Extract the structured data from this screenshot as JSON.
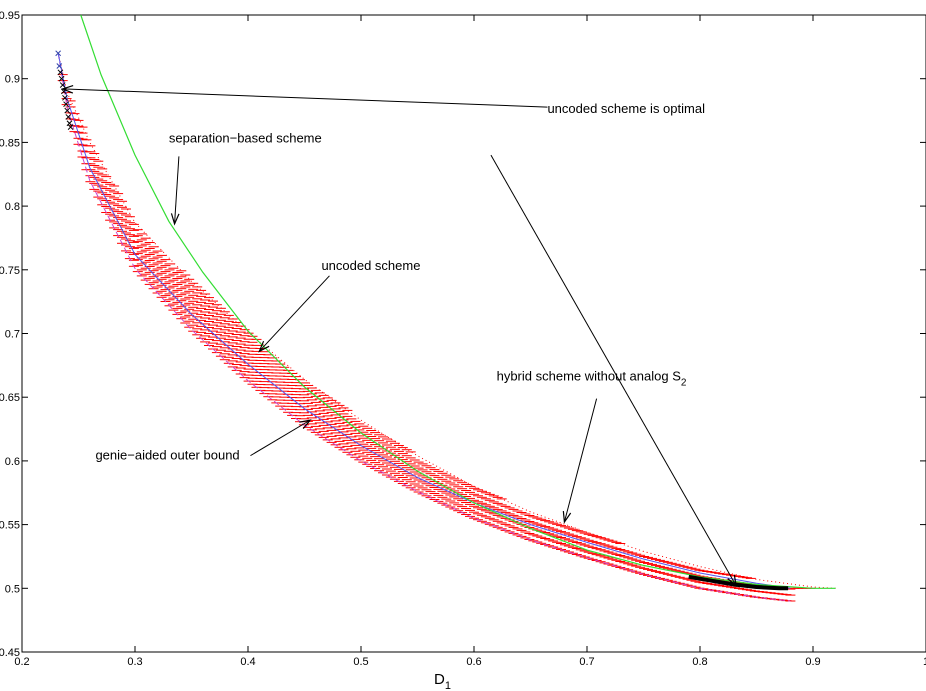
{
  "chart_data": {
    "type": "line",
    "title": "",
    "xlabel": "D",
    "xlabel_sub": "1",
    "ylabel": "",
    "xlim": [
      0.2,
      1.0
    ],
    "ylim": [
      0.45,
      0.95
    ],
    "xticks": [
      "0.2",
      "0.3",
      "0.4",
      "0.5",
      "0.6",
      "0.7",
      "0.8",
      "0.9",
      "1"
    ],
    "yticks": [
      "0.45",
      "0.5",
      "0.55",
      "0.6",
      "0.65",
      "0.7",
      "0.75",
      "0.8",
      "0.85",
      "0.9",
      "0.95"
    ],
    "grid": false,
    "colors": {
      "separation": "#33dd33",
      "uncoded": "#5555ee",
      "genie": "#cc44cc",
      "hybrid_hatch": "#ff0000",
      "annotation": "#000000"
    },
    "series": [
      {
        "key": "separation",
        "x": [
          0.252,
          0.27,
          0.3,
          0.33,
          0.36,
          0.4,
          0.45,
          0.5,
          0.55,
          0.6,
          0.65,
          0.7,
          0.75,
          0.8,
          0.85,
          0.9,
          0.92
        ],
        "y": [
          0.95,
          0.903,
          0.84,
          0.788,
          0.748,
          0.702,
          0.658,
          0.622,
          0.592,
          0.567,
          0.547,
          0.53,
          0.518,
          0.509,
          0.503,
          0.5,
          0.5
        ]
      },
      {
        "key": "uncoded",
        "x": [
          0.232,
          0.24,
          0.26,
          0.3,
          0.35,
          0.4,
          0.45,
          0.5,
          0.55,
          0.6,
          0.65,
          0.7,
          0.75,
          0.8,
          0.85,
          0.88
        ],
        "y": [
          0.92,
          0.884,
          0.83,
          0.762,
          0.715,
          0.676,
          0.641,
          0.612,
          0.587,
          0.567,
          0.55,
          0.536,
          0.523,
          0.512,
          0.504,
          0.5
        ]
      },
      {
        "key": "genie",
        "x": [
          0.232,
          0.24,
          0.26,
          0.3,
          0.35,
          0.4,
          0.45,
          0.5,
          0.55,
          0.6,
          0.65,
          0.7,
          0.75,
          0.8,
          0.85,
          0.88
        ],
        "y": [
          0.92,
          0.877,
          0.82,
          0.751,
          0.703,
          0.663,
          0.628,
          0.6,
          0.576,
          0.555,
          0.538,
          0.524,
          0.511,
          0.5,
          0.493,
          0.49
        ]
      },
      {
        "key": "hybrid",
        "x": [
          0.232,
          0.24,
          0.26,
          0.3,
          0.35,
          0.4,
          0.45,
          0.5,
          0.55,
          0.6,
          0.65,
          0.7,
          0.75,
          0.8,
          0.85,
          0.9,
          0.92
        ],
        "y": [
          0.92,
          0.889,
          0.85,
          0.787,
          0.741,
          0.701,
          0.664,
          0.632,
          0.604,
          0.58,
          0.56,
          0.544,
          0.529,
          0.517,
          0.507,
          0.501,
          0.5
        ]
      }
    ],
    "markers": {
      "x": [
        0.232,
        0.233,
        0.234,
        0.235,
        0.236,
        0.237,
        0.238,
        0.239,
        0.24,
        0.241,
        0.242,
        0.243
      ],
      "y": [
        0.92,
        0.91,
        0.905,
        0.9,
        0.895,
        0.89,
        0.885,
        0.88,
        0.875,
        0.87,
        0.865,
        0.862
      ]
    },
    "optimal_segment": {
      "x": [
        0.79,
        0.81,
        0.83,
        0.85,
        0.87,
        0.878
      ],
      "y": [
        0.509,
        0.506,
        0.503,
        0.501,
        0.5,
        0.5
      ]
    },
    "annotations": [
      {
        "key": "sep",
        "text": "separation−based scheme",
        "at": [
          0.33,
          0.85
        ],
        "arrow_to": [
          0.335,
          0.786
        ]
      },
      {
        "key": "unc",
        "text": "uncoded scheme",
        "at": [
          0.465,
          0.75
        ],
        "arrow_to": [
          0.41,
          0.686
        ]
      },
      {
        "key": "gen",
        "text": "genie−aided outer bound",
        "at": [
          0.265,
          0.601
        ],
        "arrow_to": [
          0.455,
          0.632
        ]
      },
      {
        "key": "hyb",
        "text": "hybrid scheme without analog S",
        "sub": "2",
        "at": [
          0.62,
          0.663
        ],
        "arrow_to": [
          0.68,
          0.552
        ]
      },
      {
        "key": "opt",
        "text": "uncoded scheme is optimal",
        "at": [
          0.665,
          0.873
        ],
        "arrow_to": [
          0.236,
          0.892
        ],
        "arrow_to2": [
          0.832,
          0.502
        ],
        "from2": [
          0.615,
          0.84
        ]
      }
    ]
  }
}
